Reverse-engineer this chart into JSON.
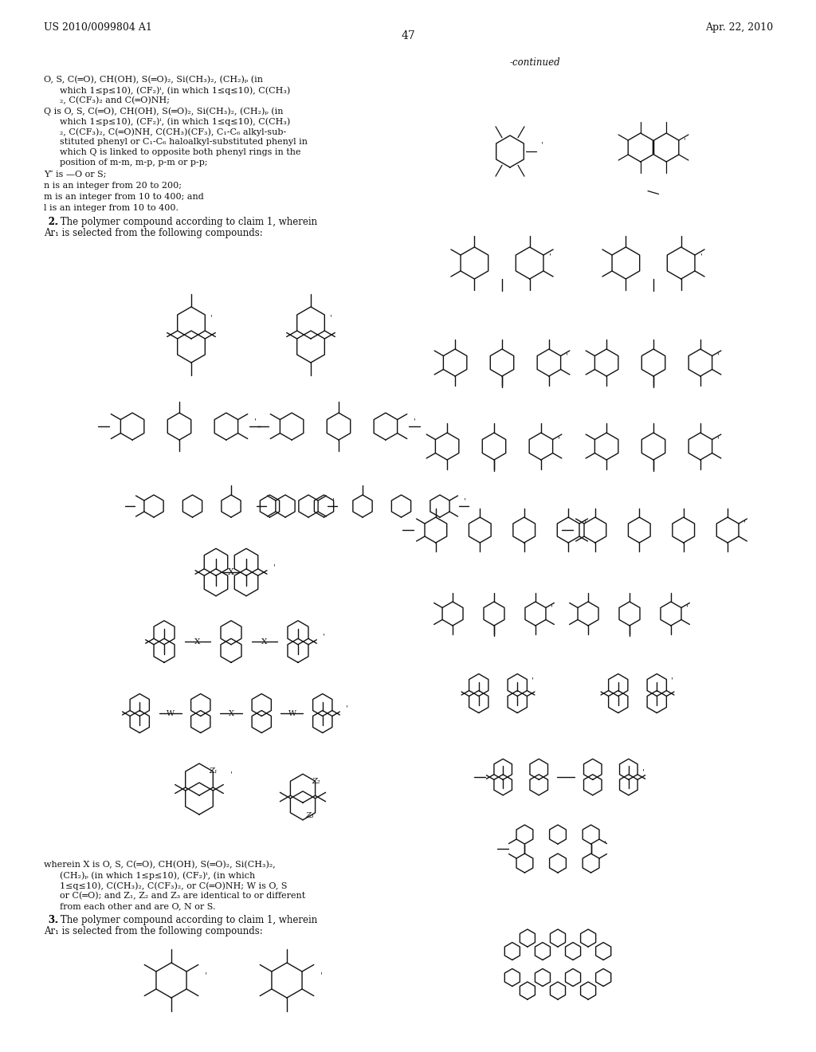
{
  "bg": "#ffffff",
  "header_left": "US 2010/0099804 A1",
  "header_right": "Apr. 22, 2010",
  "page_num": "47",
  "continued": "-continued"
}
